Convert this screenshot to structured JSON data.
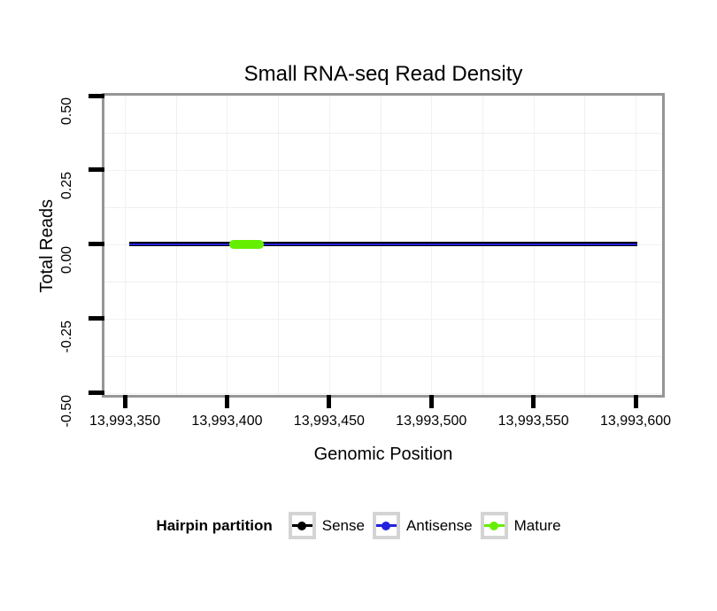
{
  "figure": {
    "background": "#FFFFFF",
    "panel_border_color": "#969696",
    "grid_major_color": "#F2F2F2",
    "grid_minor_color": "#EFEFEF",
    "tick_color": "#000000"
  },
  "chart_data": {
    "type": "line",
    "title": "Small RNA-seq Read Density",
    "xlabel": "Genomic Position",
    "ylabel": "Total Reads",
    "xlim": [
      13993340,
      13993613
    ],
    "ylim": [
      -0.506,
      0.5
    ],
    "grid": {
      "show": true,
      "minor": true
    },
    "legend_position": "bottom",
    "x_ticks": [
      {
        "value": 13993350,
        "label": "13,993,350"
      },
      {
        "value": 13993400,
        "label": "13,993,400"
      },
      {
        "value": 13993450,
        "label": "13,993,450"
      },
      {
        "value": 13993500,
        "label": "13,993,500"
      },
      {
        "value": 13993550,
        "label": "13,993,550"
      },
      {
        "value": 13993600,
        "label": "13,993,600"
      }
    ],
    "x_minor_ticks": [
      13993375,
      13993425,
      13993475,
      13993525,
      13993575
    ],
    "y_ticks": [
      {
        "value": 0.5,
        "label": "0.50"
      },
      {
        "value": 0.25,
        "label": "0.25"
      },
      {
        "value": 0,
        "label": "0.00"
      },
      {
        "value": -0.25,
        "label": "-0.25"
      },
      {
        "value": -0.5,
        "label": "-0.50"
      }
    ],
    "y_minor_ticks": [
      0.375,
      0.125,
      -0.125,
      -0.375
    ],
    "series": [
      {
        "name": "Sense",
        "color": "#000000",
        "x_start": 13993352,
        "x_end": 13993601,
        "y": 0,
        "linewidth": 5,
        "lineend": "butt"
      },
      {
        "name": "Antisense",
        "color": "#2222DD",
        "x_start": 13993352,
        "x_end": 13993601,
        "y": 0,
        "linewidth": 2.4,
        "lineend": "butt"
      },
      {
        "name": "Mature",
        "color": "#66EE00",
        "x_start": 13993403,
        "x_end": 13993416,
        "y": 0,
        "linewidth": 9.5,
        "lineend": "round"
      }
    ],
    "legend": {
      "title": "Hairpin partition",
      "entries": [
        {
          "label": "Sense",
          "color": "#000000"
        },
        {
          "label": "Antisense",
          "color": "#2222DD"
        },
        {
          "label": "Mature",
          "color": "#66EE00"
        }
      ]
    }
  }
}
